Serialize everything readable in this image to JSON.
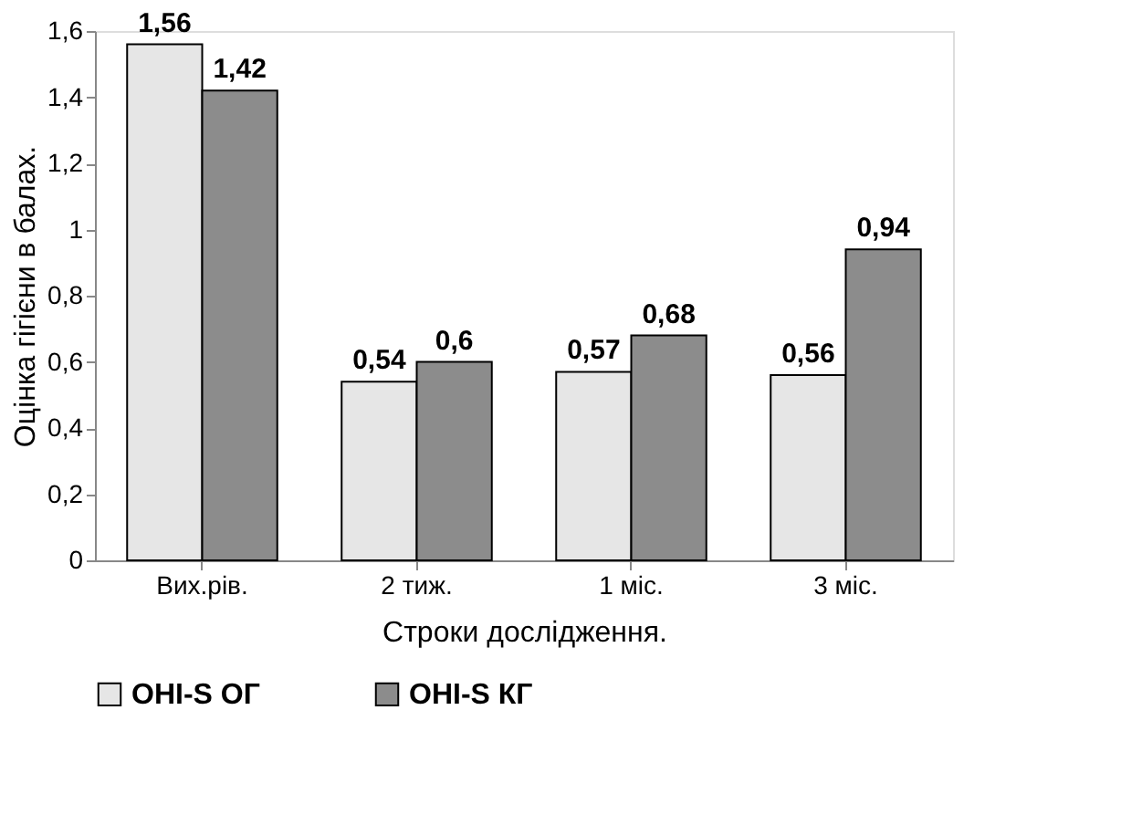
{
  "chart_data": {
    "type": "bar",
    "xlabel": "Строки дослідження.",
    "ylabel": "Оцінка гігієни в балах.",
    "categories": [
      "Вих.рів.",
      "2 тиж.",
      "1 міс.",
      "3 міс."
    ],
    "series": [
      {
        "name": "OHI-S ОГ",
        "color": "#e6e6e6",
        "values": [
          1.56,
          0.54,
          0.57,
          0.56
        ],
        "value_labels": [
          "1,56",
          "0,54",
          "0,57",
          "0,56"
        ]
      },
      {
        "name": "OHI-S КГ",
        "color": "#8c8c8c",
        "values": [
          1.42,
          0.6,
          0.68,
          0.94
        ],
        "value_labels": [
          "1,42",
          "0,6",
          "0,68",
          "0,94"
        ]
      }
    ],
    "ylim": [
      0,
      1.6
    ],
    "yticks": [
      0,
      {
        "value": 0.2,
        "label": "0,2"
      },
      {
        "value": 0.4,
        "label": "0,4"
      },
      {
        "value": 0.6,
        "label": "0,6"
      },
      {
        "value": 0.8,
        "label": "0,8"
      },
      1,
      {
        "value": 1.2,
        "label": "1,2"
      },
      {
        "value": 1.4,
        "label": "1,4"
      },
      {
        "value": 1.6,
        "label": "1,6"
      }
    ],
    "grid": false,
    "legend": "bottom"
  }
}
